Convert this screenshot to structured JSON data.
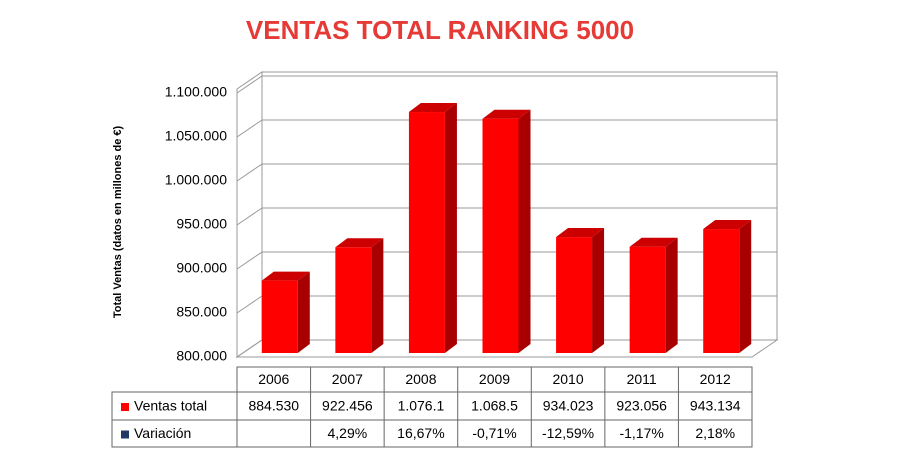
{
  "chart_data": {
    "type": "bar3d",
    "title": "VENTAS TOTAL RANKING 5000",
    "y_label": "Total Ventas (datos en millones de €)",
    "categories": [
      "2006",
      "2007",
      "2008",
      "2009",
      "2010",
      "2011",
      "2012"
    ],
    "series": [
      {
        "name": "Ventas total",
        "color": "#ff0000",
        "values": [
          884530,
          922456,
          1076100,
          1068500,
          934023,
          923056,
          943134
        ],
        "value_labels": [
          "884.530",
          "922.456",
          "1.076.1",
          "1.068.5",
          "934.023",
          "923.056",
          "943.134"
        ]
      },
      {
        "name": "Variación",
        "color": "#1f3864",
        "values": [
          null,
          4.29,
          16.67,
          -0.71,
          -12.59,
          -1.17,
          2.18
        ],
        "value_labels": [
          null,
          "4,29%",
          "16,67%",
          "-0,71%",
          "-12,59%",
          "-1,17%",
          "2,18%"
        ]
      }
    ],
    "ylim": [
      800000,
      1100000
    ],
    "yticks": [
      {
        "value": 800000,
        "label": "800.000"
      },
      {
        "value": 850000,
        "label": "850.000"
      },
      {
        "value": 900000,
        "label": "900.000"
      },
      {
        "value": 950000,
        "label": "950.000"
      },
      {
        "value": 1000000,
        "label": "1.000.000"
      },
      {
        "value": 1050000,
        "label": "1.050.000"
      },
      {
        "value": 1100000,
        "label": "1.100.000"
      }
    ],
    "grid": true
  }
}
